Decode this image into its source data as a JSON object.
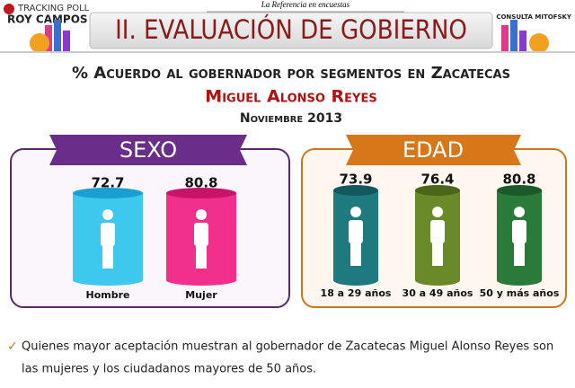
{
  "header": {
    "brand_line1": "TRACKING POLL",
    "brand_line2": "ROY CAMPOS",
    "tagline": "La Referencia en encuestas",
    "logo_text": "CONSULTA MITOFSKY",
    "title": "II. EVALUACIÓN DE GOBIERNO"
  },
  "subtitle": "% Acuerdo al gobernador por segmentos en Zacatecas",
  "name": "Miguel Alonso Reyes",
  "date": "Noviembre 2013",
  "panels": [
    {
      "title": "SEXO",
      "items": [
        {
          "label": "Hombre",
          "value": 72.7
        },
        {
          "label": "Mujer",
          "value": 80.8
        }
      ]
    },
    {
      "title": "EDAD",
      "items": [
        {
          "label": "18 a 29 años",
          "value": 73.9
        },
        {
          "label": "30 a 49 años",
          "value": 76.4
        },
        {
          "label": "50 y más años",
          "value": 80.8
        }
      ]
    }
  ],
  "note": [
    "Quienes mayor aceptación muestran al gobernador de Zacatecas Miguel Alonso Reyes son",
    "las mujeres y los ciudadanos mayores de 50 años."
  ]
}
